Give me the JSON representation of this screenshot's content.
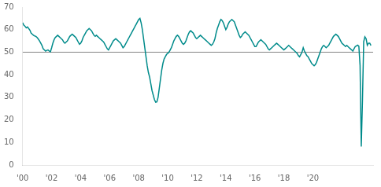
{
  "chart_data": {
    "type": "line",
    "x": [
      2000,
      2000.083333,
      2000.166667,
      2000.25,
      2000.333333,
      2000.416667,
      2000.5,
      2000.583333,
      2000.666667,
      2000.75,
      2000.833333,
      2000.916667,
      2001,
      2001.083333,
      2001.166667,
      2001.25,
      2001.333333,
      2001.416667,
      2001.5,
      2001.583333,
      2001.666667,
      2001.75,
      2001.833333,
      2001.916667,
      2002,
      2002.083333,
      2002.166667,
      2002.25,
      2002.333333,
      2002.416667,
      2002.5,
      2002.583333,
      2002.666667,
      2002.75,
      2002.833333,
      2002.916667,
      2003,
      2003.083333,
      2003.166667,
      2003.25,
      2003.333333,
      2003.416667,
      2003.5,
      2003.583333,
      2003.666667,
      2003.75,
      2003.833333,
      2003.916667,
      2004,
      2004.083333,
      2004.166667,
      2004.25,
      2004.333333,
      2004.416667,
      2004.5,
      2004.583333,
      2004.666667,
      2004.75,
      2004.833333,
      2004.916667,
      2005,
      2005.083333,
      2005.166667,
      2005.25,
      2005.333333,
      2005.416667,
      2005.5,
      2005.583333,
      2005.666667,
      2005.75,
      2005.833333,
      2005.916667,
      2006,
      2006.083333,
      2006.166667,
      2006.25,
      2006.333333,
      2006.416667,
      2006.5,
      2006.583333,
      2006.666667,
      2006.75,
      2006.833333,
      2006.916667,
      2007,
      2007.083333,
      2007.166667,
      2007.25,
      2007.333333,
      2007.416667,
      2007.5,
      2007.583333,
      2007.666667,
      2007.75,
      2007.833333,
      2007.916667,
      2008,
      2008.083333,
      2008.166667,
      2008.25,
      2008.333333,
      2008.416667,
      2008.5,
      2008.583333,
      2008.666667,
      2008.75,
      2008.833333,
      2008.916667,
      2009,
      2009.083333,
      2009.166667,
      2009.25,
      2009.333333,
      2009.416667,
      2009.5,
      2009.583333,
      2009.666667,
      2009.75,
      2009.833333,
      2009.916667,
      2010,
      2010.083333,
      2010.166667,
      2010.25,
      2010.333333,
      2010.416667,
      2010.5,
      2010.583333,
      2010.666667,
      2010.75,
      2010.833333,
      2010.916667,
      2011,
      2011.083333,
      2011.166667,
      2011.25,
      2011.333333,
      2011.416667,
      2011.5,
      2011.583333,
      2011.666667,
      2011.75,
      2011.833333,
      2011.916667,
      2012,
      2012.083333,
      2012.166667,
      2012.25,
      2012.333333,
      2012.416667,
      2012.5,
      2012.583333,
      2012.666667,
      2012.75,
      2012.833333,
      2012.916667,
      2013,
      2013.083333,
      2013.166667,
      2013.25,
      2013.333333,
      2013.416667,
      2013.5,
      2013.583333,
      2013.666667,
      2013.75,
      2013.833333,
      2013.916667,
      2014,
      2014.083333,
      2014.166667,
      2014.25,
      2014.333333,
      2014.416667,
      2014.5,
      2014.583333,
      2014.666667,
      2014.75,
      2014.833333,
      2014.916667,
      2015,
      2015.083333,
      2015.166667,
      2015.25,
      2015.333333,
      2015.416667,
      2015.5,
      2015.583333,
      2015.666667,
      2015.75,
      2015.833333,
      2015.916667,
      2016,
      2016.083333,
      2016.166667,
      2016.25,
      2016.333333,
      2016.416667,
      2016.5,
      2016.583333,
      2016.666667,
      2016.75,
      2016.833333,
      2016.916667,
      2017,
      2017.083333,
      2017.166667,
      2017.25,
      2017.333333,
      2017.416667,
      2017.5,
      2017.583333,
      2017.666667,
      2017.75,
      2017.833333,
      2017.916667,
      2018,
      2018.083333,
      2018.166667,
      2018.25,
      2018.333333,
      2018.416667,
      2018.5,
      2018.583333,
      2018.666667,
      2018.75,
      2018.833333,
      2018.916667,
      2019,
      2019.083333,
      2019.166667,
      2019.25,
      2019.333333,
      2019.416667,
      2019.5,
      2019.583333,
      2019.666667,
      2019.75,
      2019.833333,
      2019.916667,
      2020,
      2020.083333,
      2020.166667,
      2020.25,
      2020.333333,
      2020.416667,
      2020.5,
      2020.583333,
      2020.666667,
      2020.75,
      2020.833333,
      2020.916667,
      2021,
      2021.083333,
      2021.166667,
      2021.25,
      2021.333333,
      2021.416667,
      2021.5,
      2021.583333,
      2021.666667,
      2021.75,
      2021.833333,
      2021.916667,
      2022,
      2022.083333,
      2022.166667,
      2022.25,
      2022.333333,
      2022.416667,
      2022.5,
      2022.583333,
      2022.666667,
      2022.75,
      2022.833333,
      2022.916667,
      2023,
      2023.083333,
      2023.166667,
      2023.25,
      2023.333333,
      2023.416667,
      2023.5,
      2023.583333,
      2023.666667,
      2023.75,
      2023.833333,
      2023.916667,
      2024
    ],
    "values": [
      63.1,
      62.0,
      61.5,
      60.8,
      61.2,
      60.5,
      59.8,
      58.5,
      58.0,
      57.5,
      57.2,
      57.0,
      56.5,
      55.8,
      55.0,
      54.0,
      53.0,
      51.5,
      51.0,
      50.5,
      50.8,
      51.0,
      50.5,
      50.2,
      52.0,
      54.0,
      55.5,
      56.5,
      57.0,
      57.5,
      57.0,
      56.5,
      56.0,
      55.5,
      54.5,
      54.0,
      54.5,
      55.0,
      56.0,
      57.0,
      57.5,
      58.0,
      57.5,
      57.0,
      56.5,
      55.5,
      54.5,
      53.5,
      54.0,
      55.0,
      56.5,
      57.5,
      58.5,
      59.5,
      60.0,
      60.5,
      60.0,
      59.5,
      58.5,
      57.5,
      57.0,
      57.5,
      57.0,
      56.5,
      56.0,
      55.5,
      55.0,
      54.5,
      53.5,
      52.5,
      51.5,
      51.0,
      52.0,
      53.0,
      54.0,
      55.0,
      55.5,
      56.0,
      55.5,
      55.0,
      54.5,
      54.0,
      53.0,
      52.0,
      52.5,
      53.5,
      54.5,
      55.5,
      56.5,
      57.5,
      58.5,
      59.5,
      60.5,
      61.5,
      62.5,
      63.5,
      64.5,
      65.0,
      63.0,
      60.0,
      56.0,
      52.0,
      48.0,
      44.0,
      41.0,
      39.0,
      36.0,
      33.0,
      31.0,
      29.0,
      27.8,
      28.0,
      30.0,
      34.0,
      38.0,
      42.0,
      45.0,
      47.0,
      48.0,
      49.0,
      49.5,
      50.0,
      51.0,
      52.0,
      53.5,
      55.0,
      56.0,
      57.0,
      57.5,
      57.0,
      56.0,
      55.0,
      54.0,
      53.5,
      54.0,
      55.0,
      56.5,
      58.0,
      59.0,
      59.5,
      59.0,
      58.5,
      57.5,
      56.5,
      56.0,
      56.5,
      57.0,
      57.5,
      57.0,
      56.5,
      56.0,
      55.5,
      55.0,
      54.5,
      54.0,
      53.5,
      53.0,
      53.5,
      54.5,
      56.0,
      58.5,
      60.5,
      62.0,
      63.5,
      64.5,
      64.0,
      63.0,
      61.5,
      60.0,
      61.0,
      62.5,
      63.5,
      64.0,
      64.5,
      64.0,
      63.5,
      62.0,
      60.5,
      59.0,
      57.5,
      56.5,
      57.0,
      58.0,
      58.5,
      59.0,
      58.5,
      58.0,
      57.5,
      56.5,
      55.5,
      54.5,
      53.5,
      52.5,
      52.5,
      53.5,
      54.5,
      55.0,
      55.5,
      55.0,
      54.5,
      54.0,
      53.5,
      52.5,
      51.5,
      51.0,
      51.5,
      52.0,
      52.5,
      53.0,
      53.5,
      54.0,
      53.5,
      53.0,
      52.5,
      52.0,
      51.5,
      51.0,
      51.5,
      52.0,
      52.5,
      53.0,
      52.5,
      52.0,
      51.5,
      51.0,
      50.5,
      50.0,
      49.5,
      48.5,
      48.0,
      49.0,
      50.0,
      52.0,
      50.5,
      49.5,
      48.5,
      48.0,
      47.0,
      46.0,
      45.0,
      44.5,
      44.0,
      44.5,
      45.5,
      47.0,
      48.5,
      50.0,
      51.5,
      52.5,
      53.0,
      52.5,
      52.0,
      52.5,
      53.0,
      54.0,
      55.0,
      56.0,
      57.0,
      57.5,
      58.0,
      57.5,
      57.0,
      56.0,
      55.0,
      54.0,
      53.5,
      53.0,
      52.5,
      53.0,
      52.5,
      52.0,
      51.5,
      51.0,
      50.5,
      51.5,
      52.5,
      52.8,
      53.1,
      52.6,
      44.2,
      8.2,
      28.9,
      54.6,
      56.8,
      56.0,
      53.1,
      54.0,
      54.0,
      53.0
    ],
    "color": "#008B8B",
    "reference_line": {
      "value": 50,
      "color": "#888888"
    },
    "xlim": [
      2000,
      2024.15
    ],
    "xticks": [
      {
        "value": 2000,
        "label": "'00"
      },
      {
        "value": 2002,
        "label": "'02"
      },
      {
        "value": 2004,
        "label": "'04"
      },
      {
        "value": 2006,
        "label": "'06"
      },
      {
        "value": 2008,
        "label": "'08"
      },
      {
        "value": 2010,
        "label": "'10"
      },
      {
        "value": 2012,
        "label": "'12"
      },
      {
        "value": 2014,
        "label": "'14"
      },
      {
        "value": 2016,
        "label": "'16"
      },
      {
        "value": 2018,
        "label": "'18"
      },
      {
        "value": 2020,
        "label": "'20"
      }
    ],
    "ylim": [
      0,
      70
    ],
    "yticks": [
      0,
      10,
      20,
      30,
      40,
      50,
      60,
      70
    ],
    "grid": false
  }
}
